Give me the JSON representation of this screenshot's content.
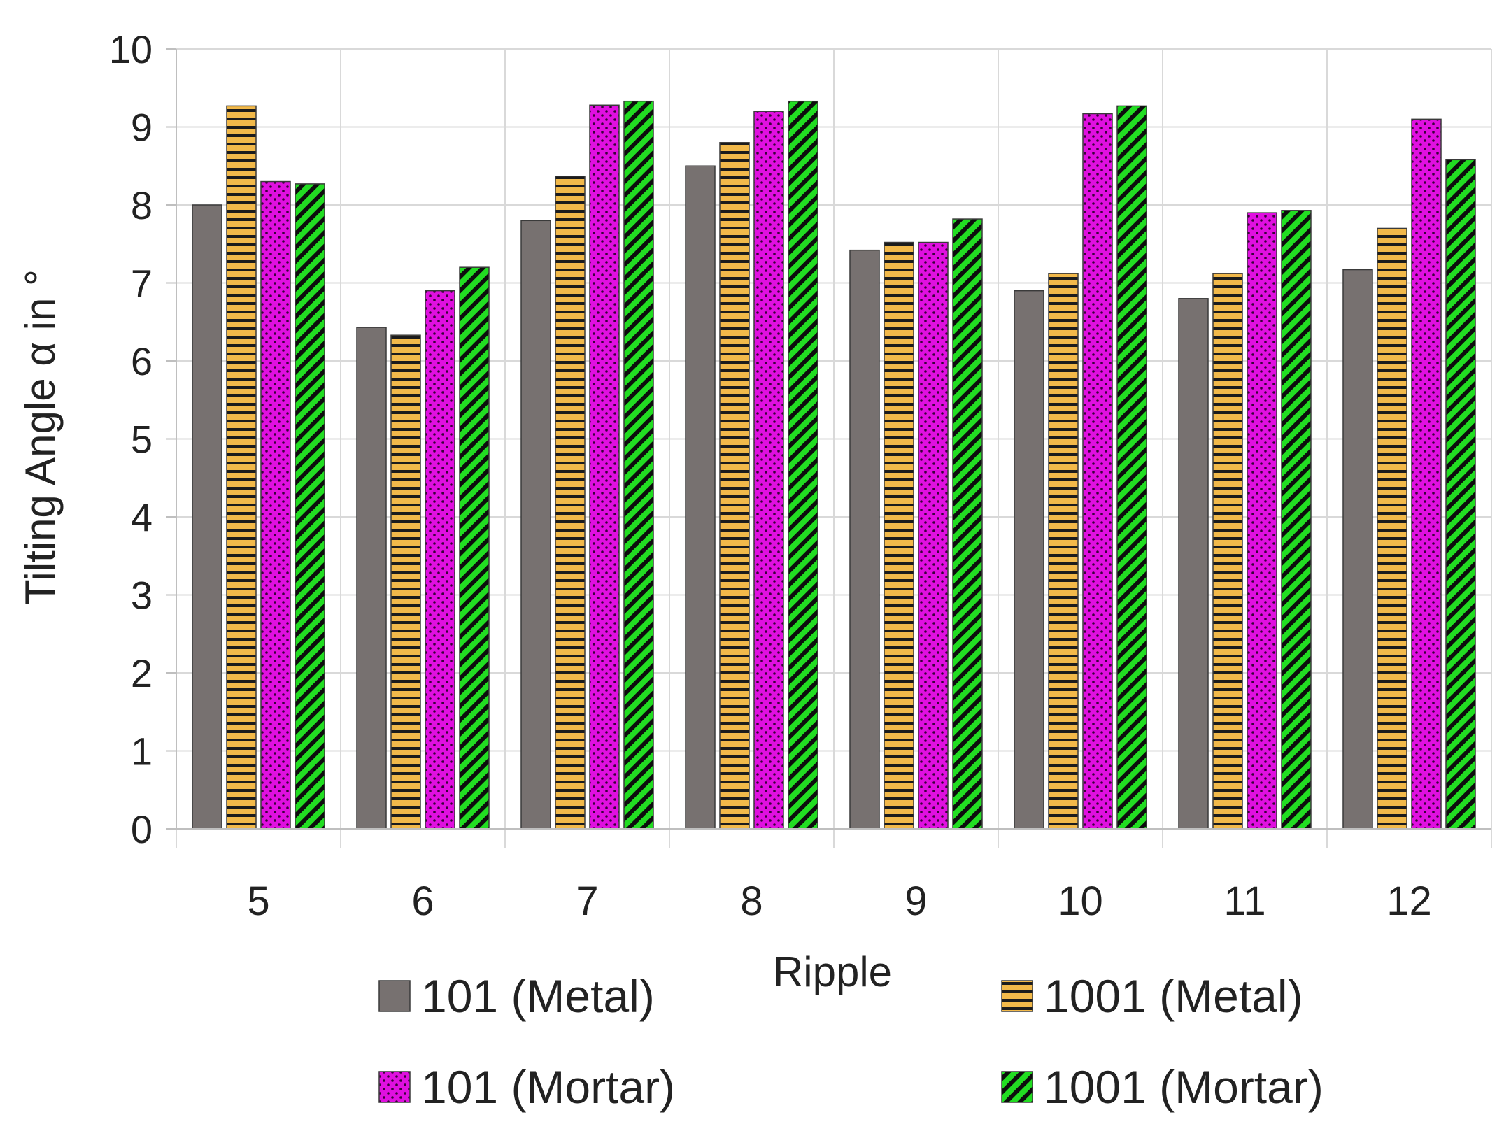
{
  "chart_data": {
    "type": "bar",
    "title": "",
    "xlabel": "Ripple",
    "ylabel": "Tilting Angle α in °",
    "ylim": [
      0,
      10
    ],
    "yticks": [
      "0",
      "1",
      "2",
      "3",
      "4",
      "5",
      "6",
      "7",
      "8",
      "9",
      "10"
    ],
    "categories": [
      "5",
      "6",
      "7",
      "8",
      "9",
      "10",
      "11",
      "12"
    ],
    "grid": true,
    "legend_position": "bottom",
    "series": [
      {
        "name": "101 (Metal)",
        "color": "#777170",
        "pattern": "solid",
        "values": [
          8.0,
          6.43,
          7.8,
          8.5,
          7.42,
          6.9,
          6.8,
          7.17
        ]
      },
      {
        "name": "1001 (Metal)",
        "color": "#f2b94a",
        "pattern": "horizontal-lines",
        "values": [
          9.27,
          6.33,
          8.37,
          8.8,
          7.52,
          7.12,
          7.12,
          7.7
        ]
      },
      {
        "name": "101 (Mortar)",
        "color": "#e010e0",
        "pattern": "dots",
        "values": [
          8.3,
          6.9,
          9.28,
          9.2,
          7.52,
          9.17,
          7.9,
          9.1
        ]
      },
      {
        "name": "1001 (Mortar)",
        "color": "#22dd22",
        "pattern": "diagonal-lines",
        "values": [
          8.27,
          7.2,
          9.33,
          9.33,
          7.82,
          9.27,
          7.93,
          8.58
        ]
      }
    ]
  }
}
